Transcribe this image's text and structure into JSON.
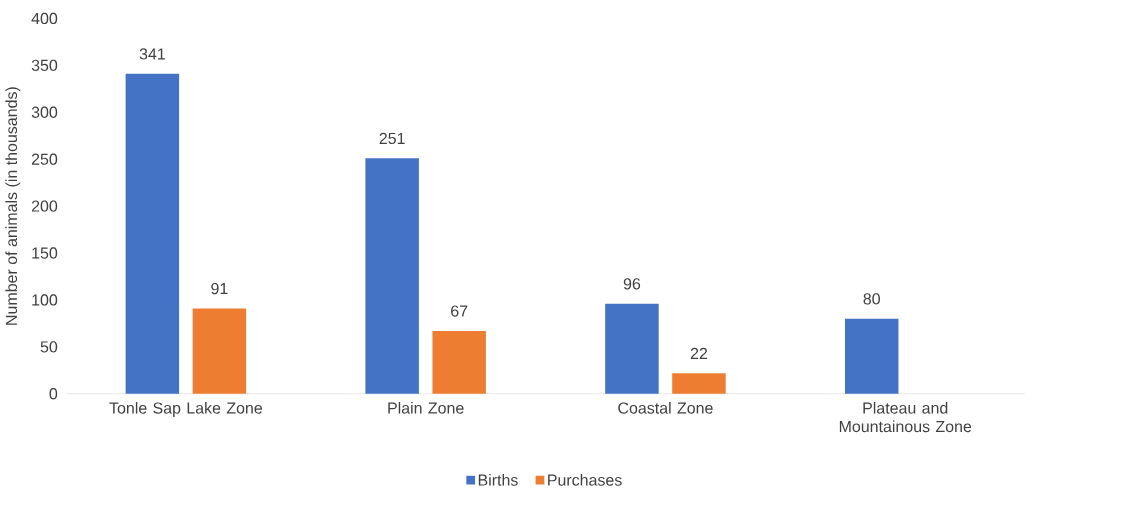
{
  "chart_data": {
    "type": "bar",
    "ylabel": "Number of animals (in thousands)",
    "categories": [
      "Tonle Sap Lake Zone",
      "Plain Zone",
      "Coastal Zone",
      "Plateau and Mountainous Zone"
    ],
    "series": [
      {
        "name": "Births",
        "color": "#4472c4",
        "values": [
          341,
          251,
          96,
          80
        ]
      },
      {
        "name": "Purchases",
        "color": "#ed7d31",
        "values": [
          91,
          67,
          22,
          null
        ]
      }
    ],
    "ylim": [
      0,
      400
    ],
    "yticks": [
      0,
      50,
      100,
      150,
      200,
      250,
      300,
      350,
      400
    ],
    "legend": "bottom",
    "data_labels": true
  }
}
